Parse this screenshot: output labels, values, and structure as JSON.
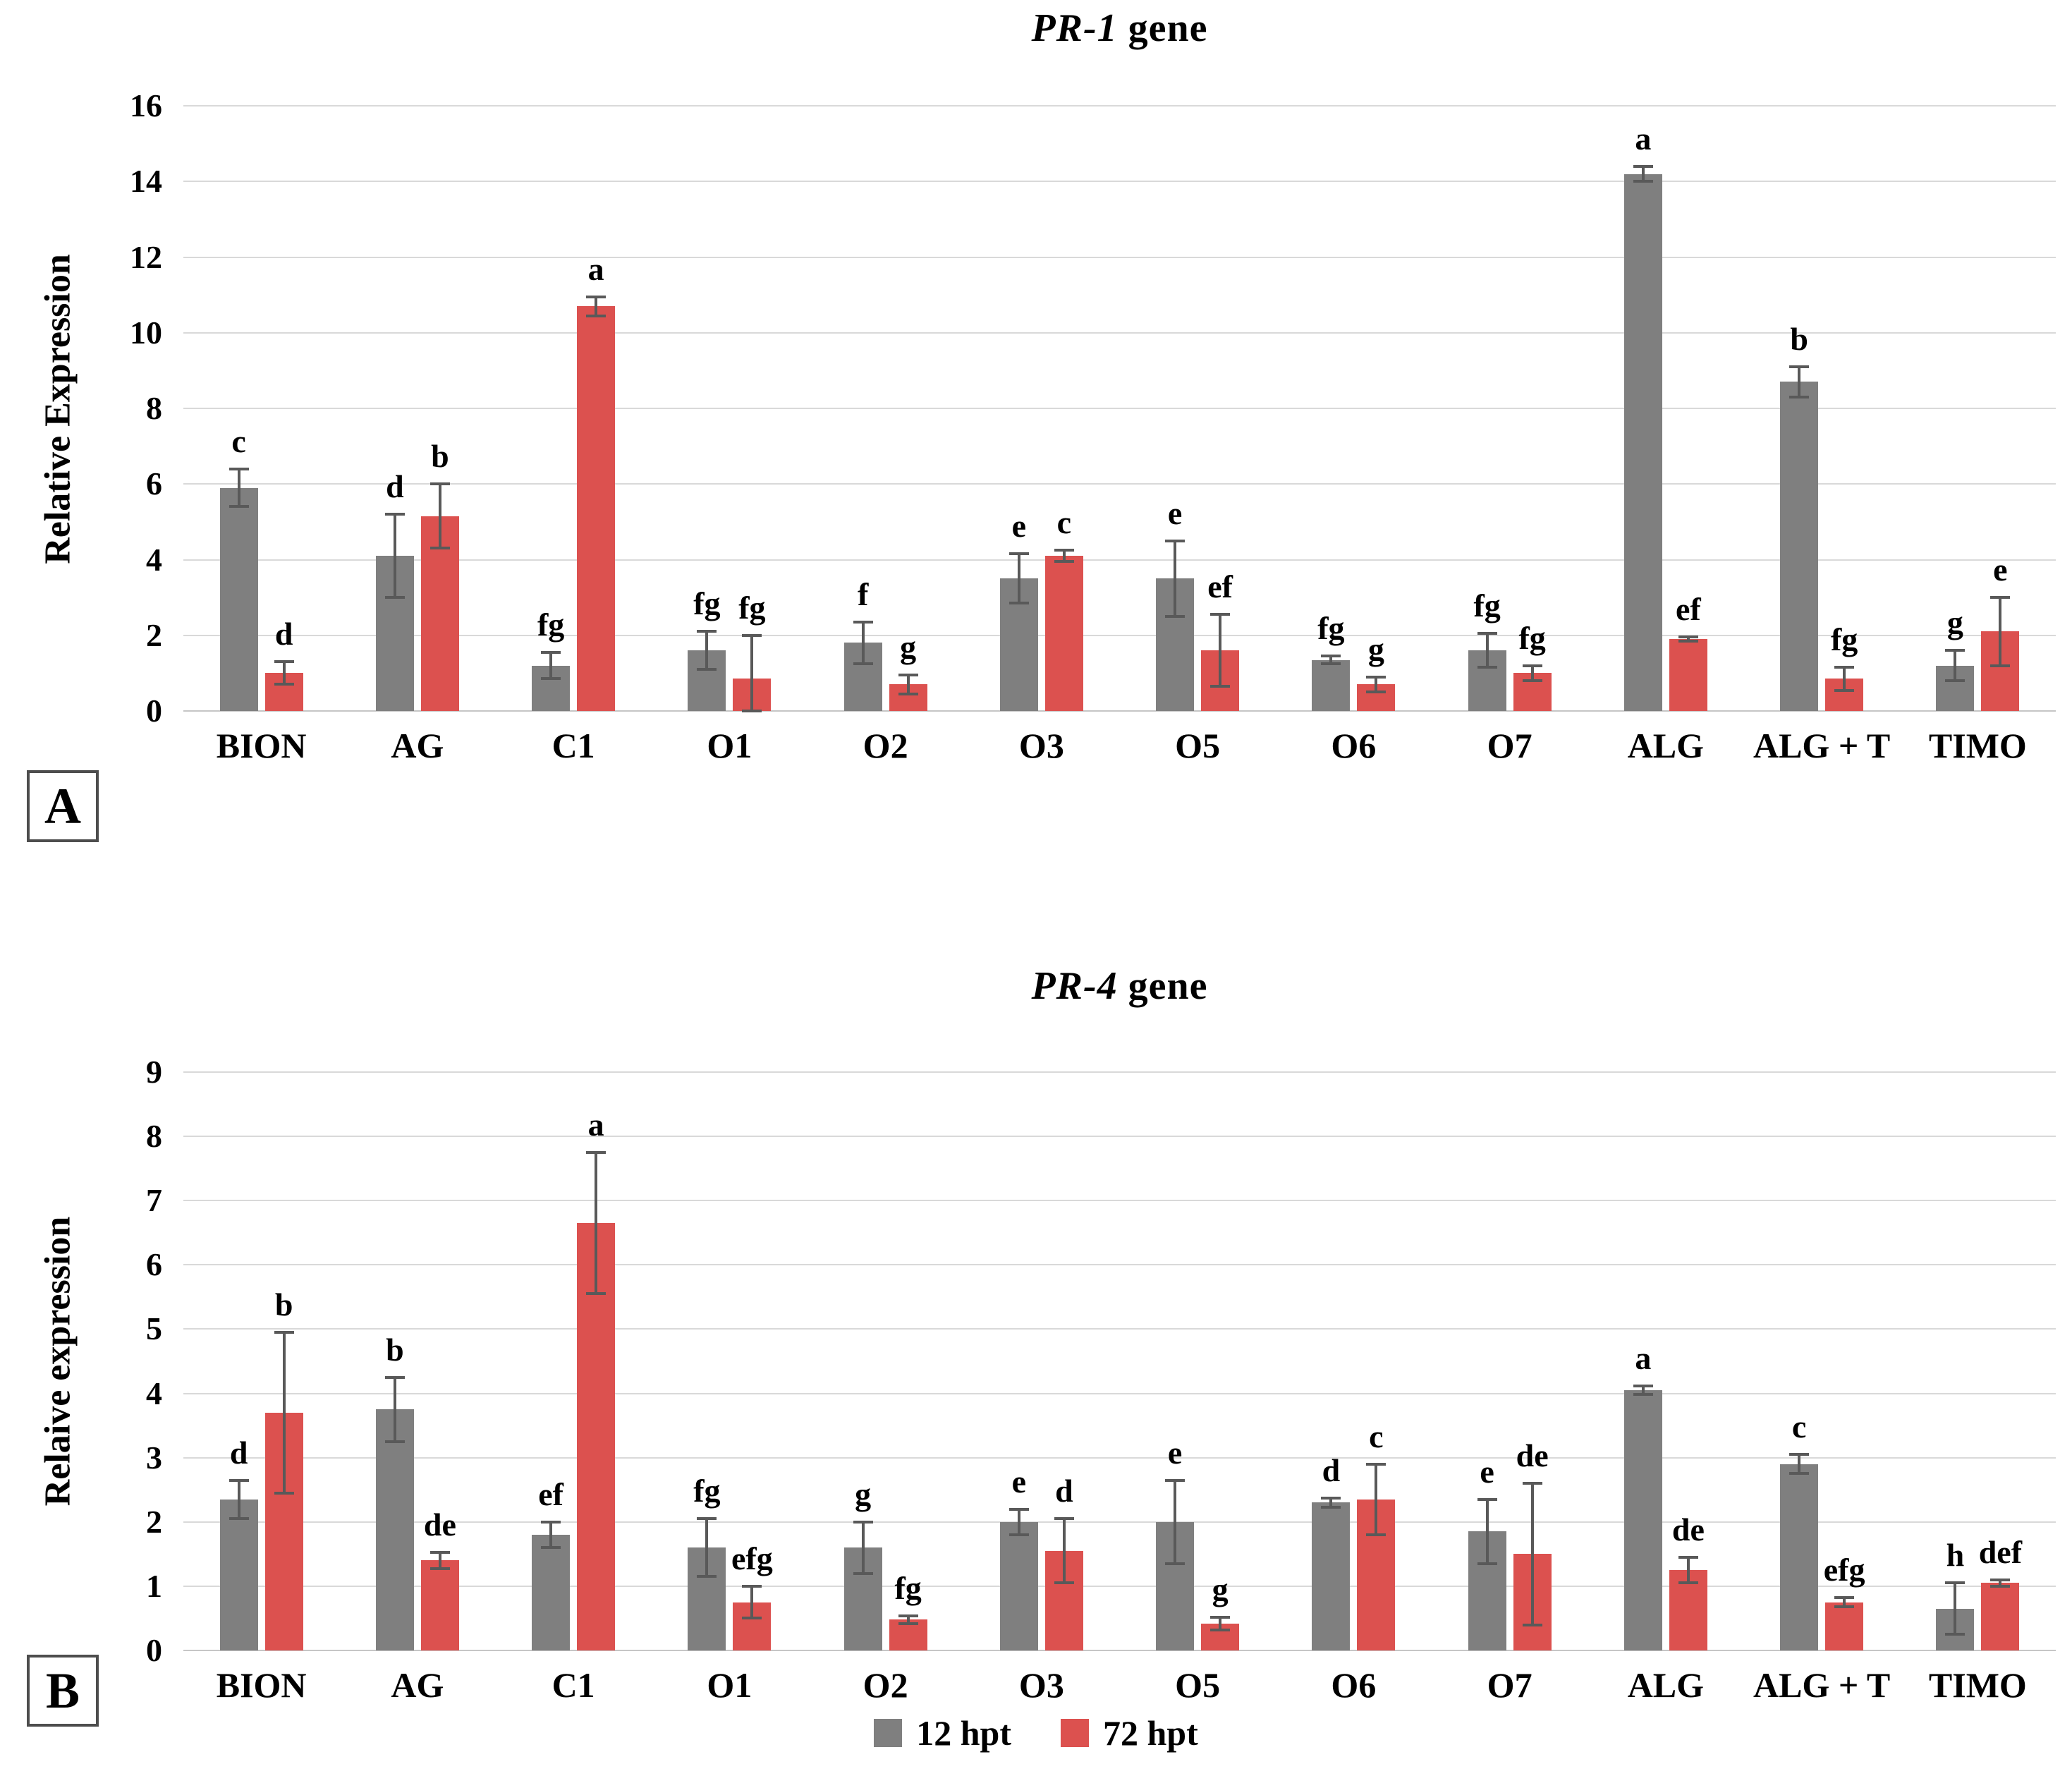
{
  "figure": {
    "description": "Two-panel grouped bar chart of relative gene expression with error bars and significance letters"
  },
  "panels": [
    {
      "letter": "A"
    },
    {
      "letter": "B"
    }
  ],
  "legend": {
    "items": [
      {
        "label": "12 hpt",
        "color": "#7F7F7F"
      },
      {
        "label": "72 hpt",
        "color": "#DC514F"
      }
    ]
  },
  "colors": {
    "gray_series": "#7F7F7F",
    "red_series": "#DC514F",
    "error_bar": "#595959",
    "gridline": "#D9D9D9"
  },
  "chart_data": [
    {
      "type": "bar",
      "panel": "A",
      "title": "PR-1 gene",
      "title_italic": "PR-1",
      "title_rest": " gene",
      "ylabel": "Relative Expression",
      "ylim": [
        0,
        16
      ],
      "ytick_step": 2,
      "yticks": [
        0,
        2,
        4,
        6,
        8,
        10,
        12,
        14,
        16
      ],
      "grid": true,
      "legend_position": "shared-bottom",
      "categories": [
        "BION",
        "AG",
        "C1",
        "O1",
        "O2",
        "O3",
        "O5",
        "O6",
        "O7",
        "ALG",
        "ALG + T",
        "TIMO"
      ],
      "series": [
        {
          "name": "12 hpt",
          "color": "#7F7F7F",
          "values": [
            5.9,
            4.1,
            1.2,
            1.6,
            1.8,
            3.5,
            3.5,
            1.35,
            1.6,
            14.2,
            8.7,
            1.2
          ],
          "errors": [
            0.5,
            1.1,
            0.35,
            0.5,
            0.55,
            0.65,
            1.0,
            0.1,
            0.45,
            0.2,
            0.4,
            0.4
          ],
          "letters": [
            "c",
            "d",
            "fg",
            "fg",
            "f",
            "e",
            "e",
            "fg",
            "fg",
            "a",
            "b",
            "g"
          ]
        },
        {
          "name": "72 hpt",
          "color": "#DC514F",
          "values": [
            1.0,
            5.15,
            10.7,
            0.85,
            0.7,
            4.1,
            1.6,
            0.7,
            1.0,
            1.9,
            0.85,
            2.1
          ],
          "errors": [
            0.3,
            0.85,
            0.25,
            1.15,
            0.25,
            0.15,
            0.95,
            0.2,
            0.2,
            0.05,
            0.3,
            0.9
          ],
          "letters": [
            "d",
            "b",
            "a",
            "fg",
            "g",
            "c",
            "ef",
            "g",
            "fg",
            "ef",
            "fg",
            "e"
          ]
        }
      ]
    },
    {
      "type": "bar",
      "panel": "B",
      "title": "PR-4 gene",
      "title_italic": "PR-4",
      "title_rest": " gene",
      "ylabel": "Relaive expression",
      "ylim": [
        0,
        9
      ],
      "ytick_step": 1,
      "yticks": [
        0,
        1,
        2,
        3,
        4,
        5,
        6,
        7,
        8,
        9
      ],
      "grid": true,
      "legend_position": "shared-bottom",
      "categories": [
        "BION",
        "AG",
        "C1",
        "O1",
        "O2",
        "O3",
        "O5",
        "O6",
        "O7",
        "ALG",
        "ALG + T",
        "TIMO"
      ],
      "series": [
        {
          "name": "12 hpt",
          "color": "#7F7F7F",
          "values": [
            2.35,
            3.75,
            1.8,
            1.6,
            1.6,
            2.0,
            2.0,
            2.3,
            1.85,
            4.05,
            2.9,
            0.65
          ],
          "errors": [
            0.3,
            0.5,
            0.2,
            0.45,
            0.4,
            0.2,
            0.65,
            0.07,
            0.5,
            0.07,
            0.15,
            0.4
          ],
          "letters": [
            "d",
            "b",
            "ef",
            "fg",
            "g",
            "e",
            "e",
            "d",
            "e",
            "a",
            "c",
            "h"
          ]
        },
        {
          "name": "72 hpt",
          "color": "#DC514F",
          "values": [
            3.7,
            1.4,
            6.65,
            0.75,
            0.48,
            1.55,
            0.42,
            2.35,
            1.5,
            1.25,
            0.75,
            1.05
          ],
          "errors": [
            1.25,
            0.13,
            1.1,
            0.25,
            0.06,
            0.5,
            0.1,
            0.55,
            1.1,
            0.2,
            0.07,
            0.05
          ],
          "letters": [
            "b",
            "de",
            "a",
            "efg",
            "fg",
            "d",
            "g",
            "c",
            "de",
            "de",
            "efg",
            "def"
          ]
        }
      ]
    }
  ]
}
